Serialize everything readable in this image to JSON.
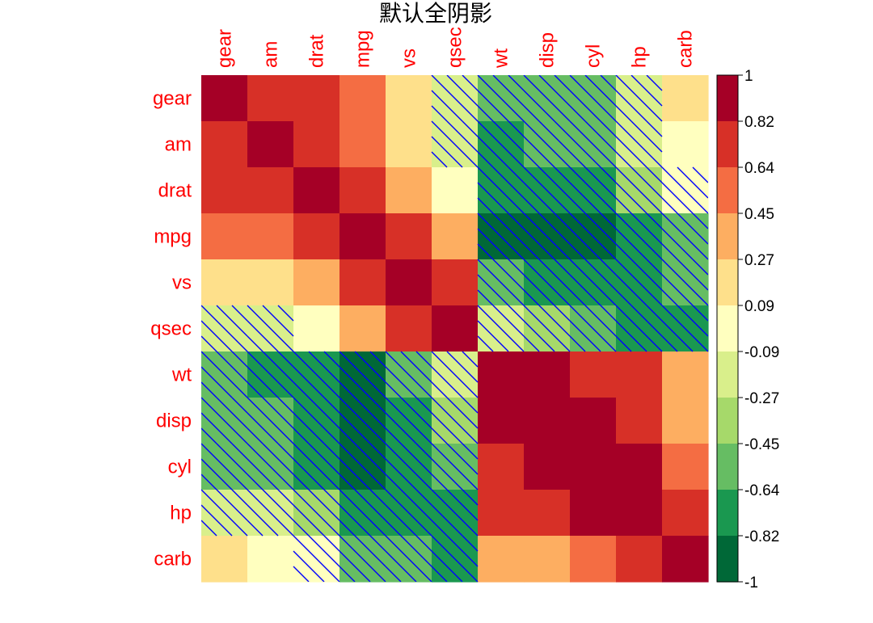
{
  "chart_data": {
    "type": "heatmap",
    "title": "默认全阴影",
    "variables": [
      "gear",
      "am",
      "drat",
      "mpg",
      "vs",
      "qsec",
      "wt",
      "disp",
      "cyl",
      "hp",
      "carb"
    ],
    "values": [
      [
        1.0,
        0.79,
        0.7,
        0.48,
        0.21,
        -0.21,
        -0.58,
        -0.56,
        -0.49,
        -0.13,
        0.27
      ],
      [
        0.79,
        1.0,
        0.71,
        0.6,
        0.17,
        -0.23,
        -0.69,
        -0.59,
        -0.52,
        -0.24,
        0.06
      ],
      [
        0.7,
        0.71,
        1.0,
        0.68,
        0.44,
        0.09,
        -0.71,
        -0.71,
        -0.7,
        -0.45,
        -0.09
      ],
      [
        0.48,
        0.6,
        0.68,
        1.0,
        0.66,
        0.42,
        -0.87,
        -0.85,
        -0.85,
        -0.78,
        -0.55
      ],
      [
        0.21,
        0.17,
        0.44,
        0.66,
        1.0,
        0.74,
        -0.55,
        -0.71,
        -0.81,
        -0.72,
        -0.57
      ],
      [
        -0.21,
        -0.23,
        0.09,
        0.42,
        0.74,
        1.0,
        -0.17,
        -0.43,
        -0.59,
        -0.71,
        -0.66
      ],
      [
        -0.58,
        -0.69,
        -0.71,
        -0.87,
        -0.55,
        -0.17,
        1.0,
        0.89,
        0.78,
        0.66,
        0.43
      ],
      [
        -0.56,
        -0.59,
        -0.71,
        -0.85,
        -0.71,
        -0.43,
        0.89,
        1.0,
        0.9,
        0.79,
        0.39
      ],
      [
        -0.49,
        -0.52,
        -0.7,
        -0.85,
        -0.81,
        -0.59,
        0.78,
        0.9,
        1.0,
        0.83,
        0.53
      ],
      [
        -0.13,
        -0.24,
        -0.45,
        -0.78,
        -0.72,
        -0.71,
        0.66,
        0.79,
        0.83,
        1.0,
        0.75
      ],
      [
        0.27,
        0.06,
        -0.09,
        -0.55,
        -0.57,
        -0.66,
        0.43,
        0.39,
        0.53,
        0.75,
        1.0
      ]
    ],
    "colorbar": {
      "ticks": [
        "1",
        "0.82",
        "0.64",
        "0.45",
        "0.27",
        "0.09",
        "-0.09",
        "-0.27",
        "-0.45",
        "-0.64",
        "-0.82",
        "-1"
      ],
      "colors": [
        "#A50026",
        "#D73027",
        "#F46D43",
        "#FDAE61",
        "#FEE08B",
        "#FFFFBF",
        "#D9EF8B",
        "#A6D96A",
        "#66BD63",
        "#1A9850",
        "#006837"
      ],
      "range": [
        -1,
        1
      ]
    },
    "shade": {
      "negative": "hatched",
      "hatch_color": "#0000FF"
    },
    "label_color": "#FF0000"
  }
}
